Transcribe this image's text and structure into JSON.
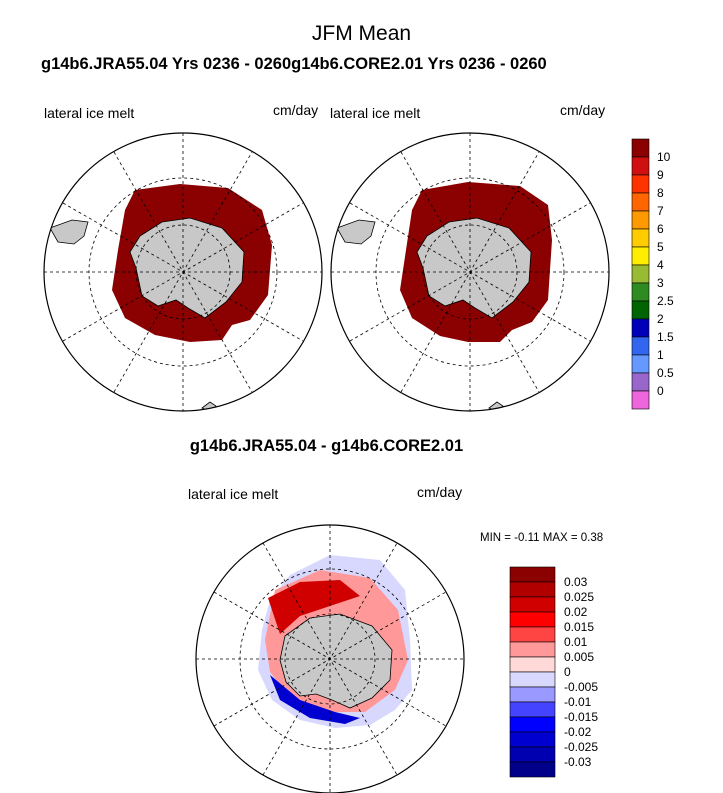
{
  "title": "JFM Mean",
  "subtitle": "g14b6.JRA55.04  Yrs 0236 - 0260g14b6.CORE2.01  Yrs 0236 - 0260",
  "panels": [
    {
      "variable": "lateral ice melt",
      "units": "cm/day"
    },
    {
      "variable": "lateral ice melt",
      "units": "cm/day"
    }
  ],
  "difference": {
    "title": "g14b6.JRA55.04 - g14b6.CORE2.01",
    "variable": "lateral ice melt",
    "units": "cm/day",
    "stats": "MIN =  -0.11 MAX =   0.38"
  },
  "colorbar_top": {
    "labels": [
      "10",
      "9",
      "8",
      "7",
      "6",
      "5",
      "4",
      "3",
      "2.5",
      "2",
      "1.5",
      "1",
      "0.5",
      "0"
    ],
    "colors": [
      "#8b0000",
      "#d01010",
      "#ff3300",
      "#ff6600",
      "#ff9900",
      "#ffcc00",
      "#ffee00",
      "#99bb33",
      "#2e8b22",
      "#006400",
      "#0000bb",
      "#3366ee",
      "#6699ff",
      "#9966cc",
      "#ee66dd"
    ]
  },
  "colorbar_diff": {
    "labels": [
      "0.03",
      "0.025",
      "0.02",
      "0.015",
      "0.01",
      "0.005",
      "0",
      "-0.005",
      "-0.01",
      "-0.015",
      "-0.02",
      "-0.025",
      "-0.03"
    ],
    "colors": [
      "#8b0000",
      "#b00000",
      "#d00000",
      "#ff0000",
      "#ff4444",
      "#ff9999",
      "#ffd8d8",
      "#d8d8ff",
      "#9999ff",
      "#4444ff",
      "#0000ff",
      "#0000d0",
      "#0000b0",
      "#00008b"
    ]
  },
  "colors": {
    "land": "#c8c8c8",
    "ice_melt": "#8b0000",
    "frame": "#000000"
  }
}
